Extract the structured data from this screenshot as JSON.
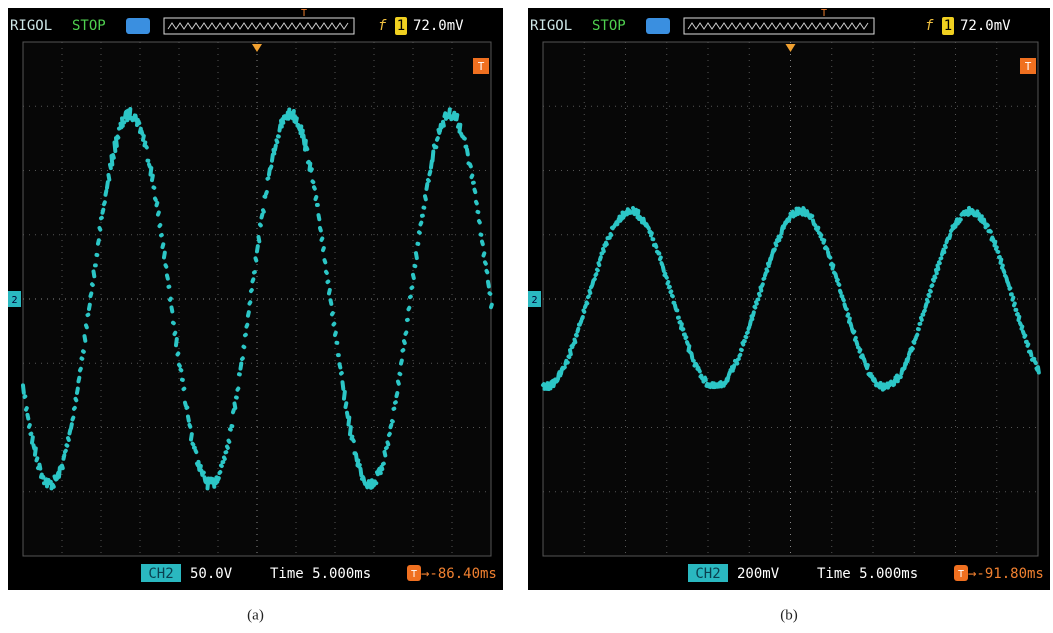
{
  "panels": [
    {
      "brand": "RIGOL",
      "status": "STOP",
      "trigger_marker": "T",
      "trigger_edge": "f",
      "trigger_source": "1",
      "trigger_level": "72.0mV",
      "trigger_flag": "T",
      "channel_marker": "2",
      "channel": "CH2",
      "scale": "50.0V",
      "timebase": "Time 5.000ms",
      "offset_icon": "T",
      "offset": "→-86.40ms",
      "caption": "(a)"
    },
    {
      "brand": "RIGOL",
      "status": "STOP",
      "trigger_marker": "T",
      "trigger_edge": "f",
      "trigger_source": "1",
      "trigger_level": "72.0mV",
      "trigger_flag": "T",
      "channel_marker": "2",
      "channel": "CH2",
      "scale": "200mV",
      "timebase": "Time 5.000ms",
      "offset_icon": "T",
      "offset": "→-91.80ms",
      "caption": "(b)"
    }
  ]
}
